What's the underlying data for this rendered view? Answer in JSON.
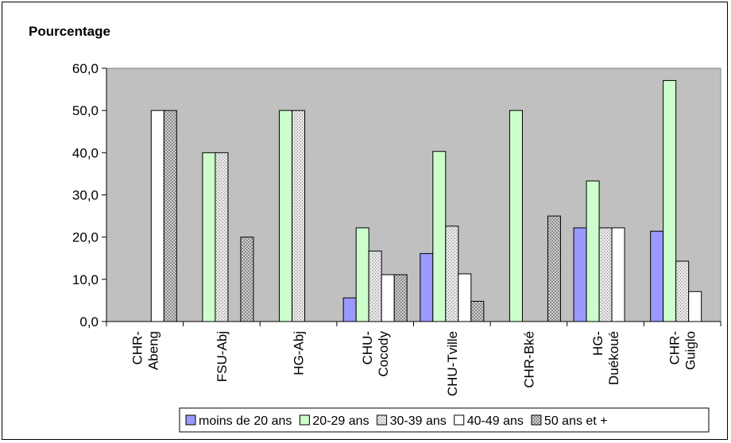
{
  "chart_data": {
    "type": "bar",
    "title": "Pourcentage",
    "xlabel": "",
    "ylabel": "",
    "ylim": [
      0,
      60
    ],
    "yticks": [
      "0,0",
      "10,0",
      "20,0",
      "30,0",
      "40,0",
      "50,0",
      "60,0"
    ],
    "grid": false,
    "plot_background": "#c0c0c0",
    "legend_position": "bottom",
    "categories": [
      [
        "CHR-",
        "Abeng"
      ],
      [
        "FSU-Abj"
      ],
      [
        "HG-Abj"
      ],
      [
        "CHU-",
        "Cocody"
      ],
      [
        "CHU-Tville"
      ],
      [
        "CHR-Bké"
      ],
      [
        "HG-",
        "Duékoué"
      ],
      [
        "CHR-",
        "Guiglo"
      ]
    ],
    "series": [
      {
        "name": "moins de 20 ans",
        "color": "#9999ff",
        "pattern": "solid",
        "values": [
          0,
          0,
          0,
          5.6,
          16.1,
          0,
          22.2,
          21.4
        ]
      },
      {
        "name": "20-29 ans",
        "color": "#ccffcc",
        "pattern": "solid",
        "values": [
          0,
          40.0,
          50.0,
          22.2,
          40.3,
          50.0,
          33.3,
          57.1
        ]
      },
      {
        "name": "30-39 ans",
        "color": "#e0e0e0",
        "pattern": "dots",
        "values": [
          0,
          40.0,
          50.0,
          16.7,
          22.6,
          0,
          22.2,
          14.3
        ]
      },
      {
        "name": "40-49 ans",
        "color": "#ffffff",
        "pattern": "solid",
        "values": [
          50.0,
          0,
          0,
          11.1,
          11.3,
          0,
          22.2,
          7.1
        ]
      },
      {
        "name": "50 ans et +",
        "color": "#c8c8c8",
        "pattern": "crosshatch",
        "values": [
          50.0,
          20.0,
          0,
          11.1,
          4.8,
          25.0,
          0,
          0
        ]
      }
    ]
  }
}
